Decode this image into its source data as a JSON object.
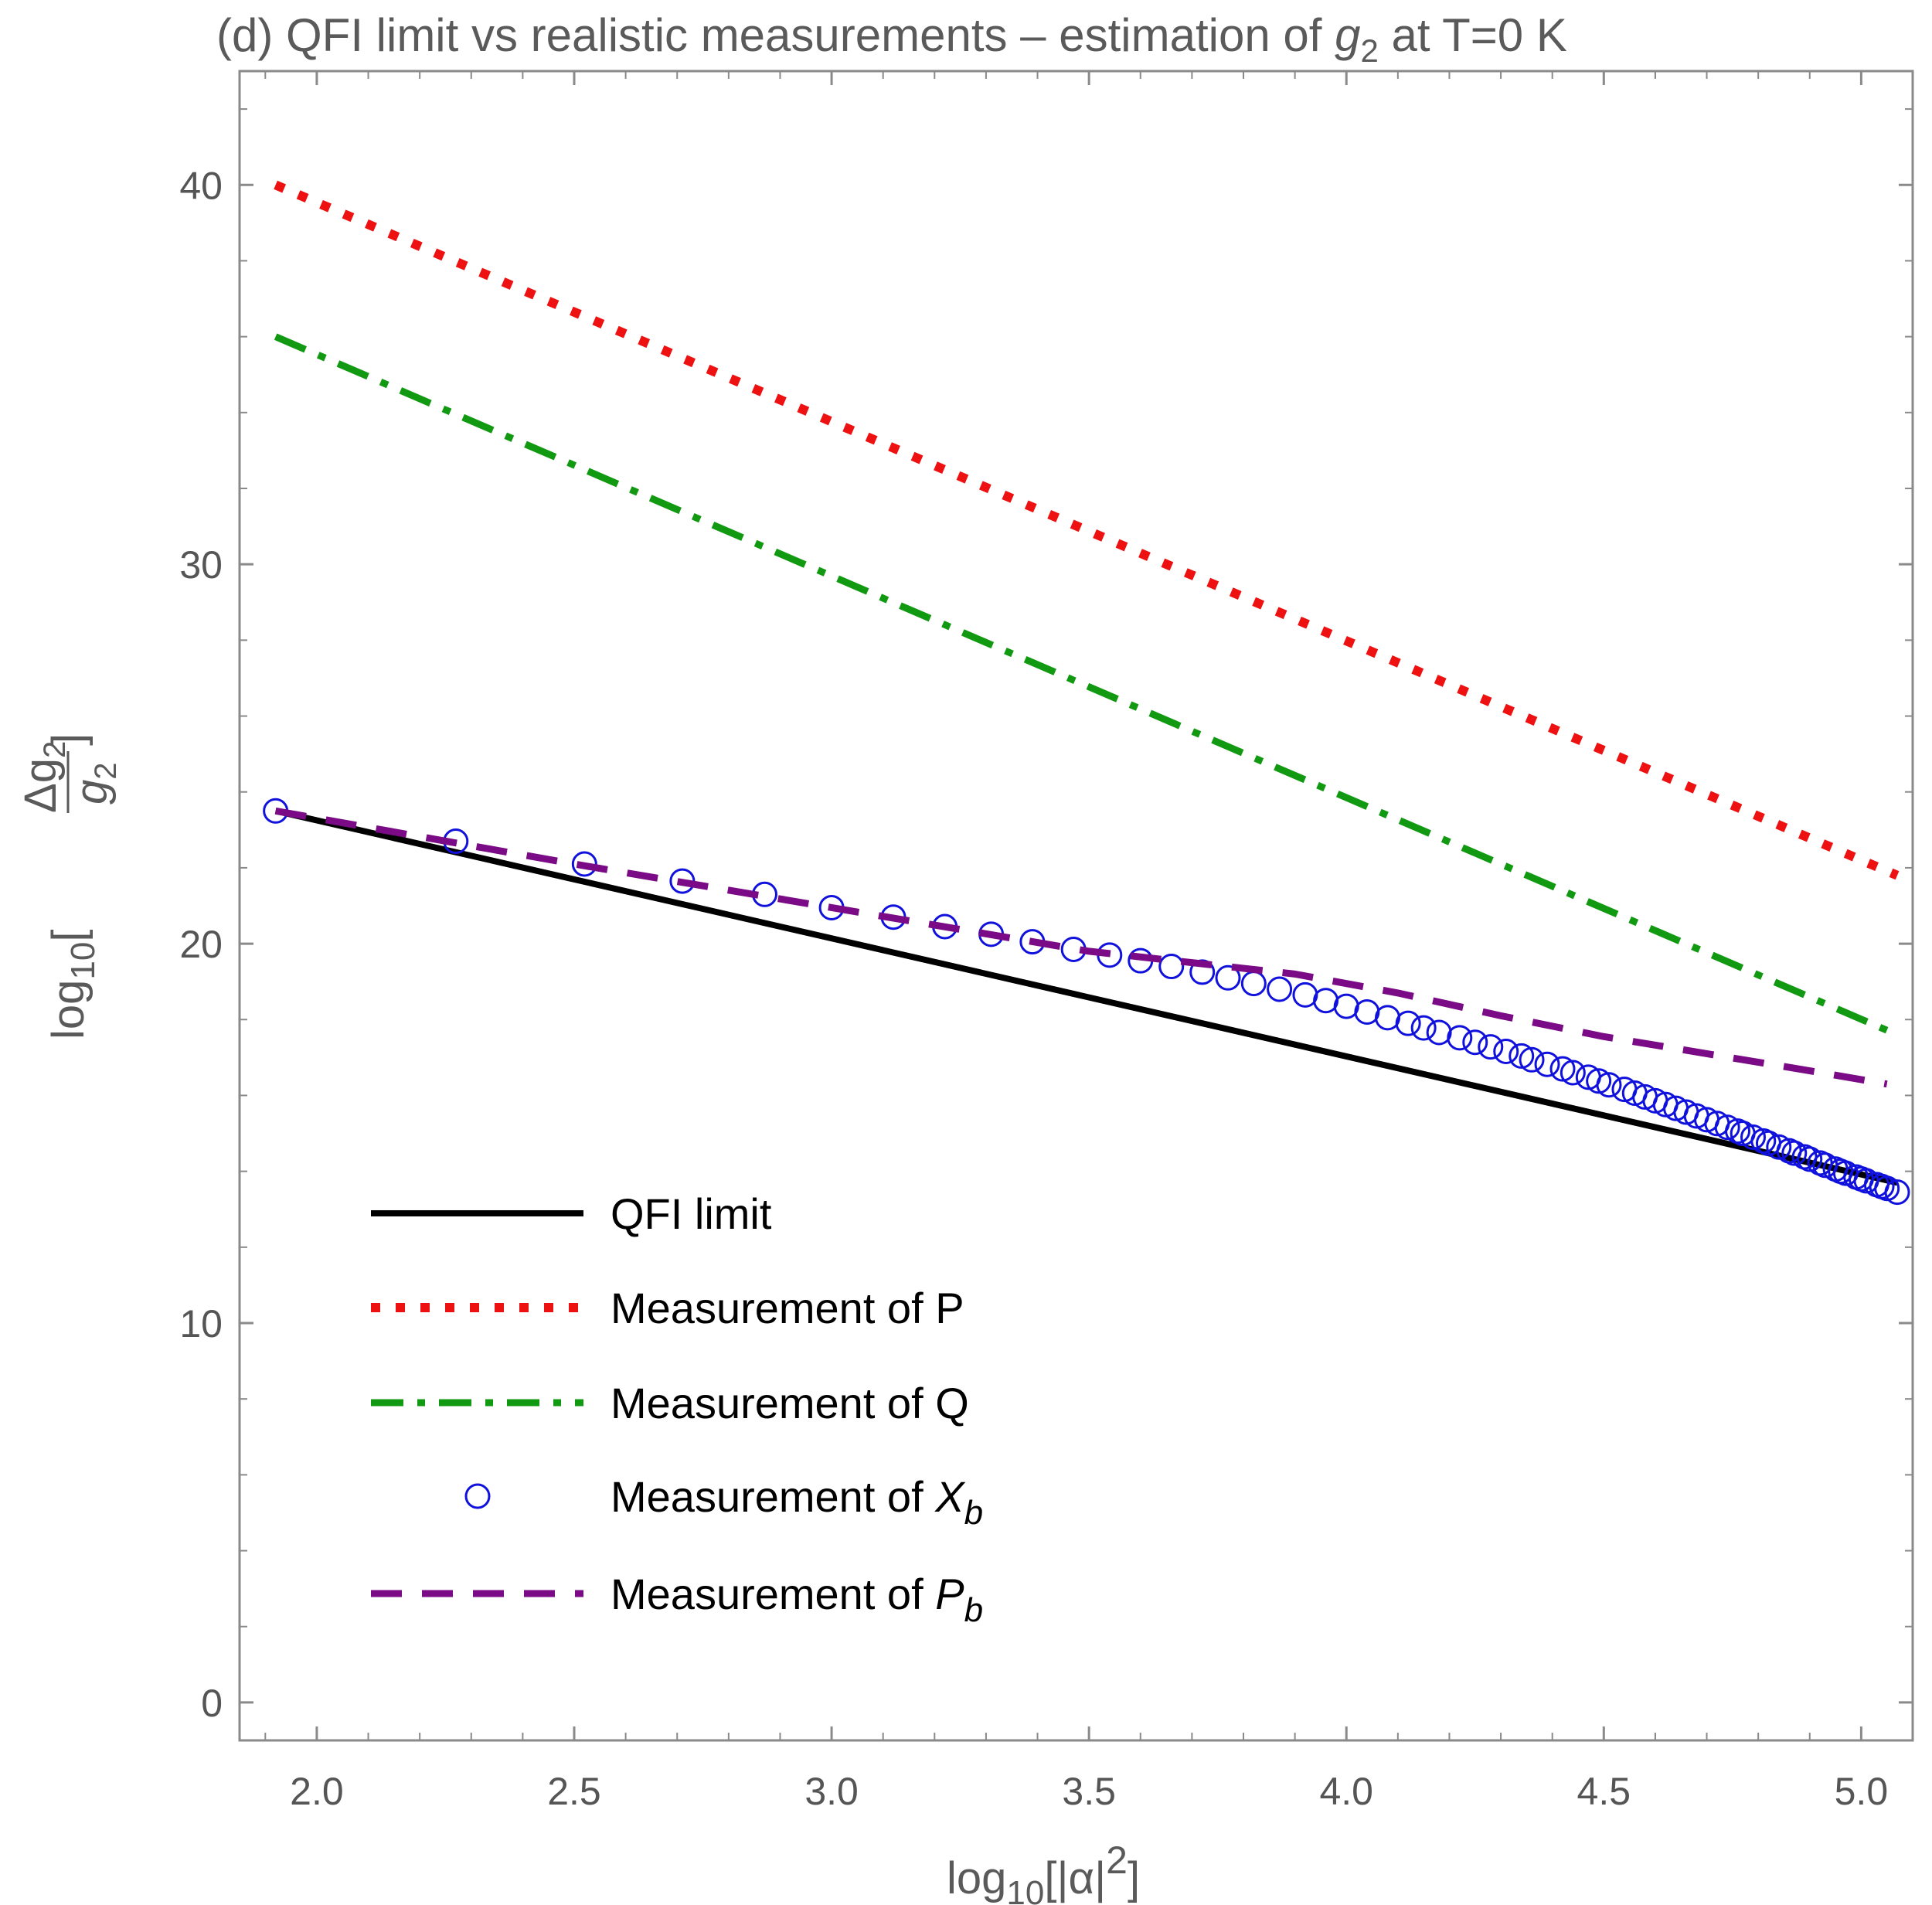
{
  "chart_data": {
    "type": "line",
    "title": {
      "prefix": "(d) QFI limit vs realistic measurements – estimation of ",
      "var": "g",
      "var_sub": "2",
      "suffix": " at T=0 K"
    },
    "xlabel": {
      "log": "log",
      "log_sub": "10",
      "body": "[|α|",
      "sup": "2",
      "close": "]"
    },
    "ylabel": {
      "log": "log",
      "log_sub": "10",
      "open": "[",
      "num": "Δg",
      "num_sub": "2",
      "den": "g",
      "den_sub": "2",
      "close": "]"
    },
    "xlim": [
      1.85,
      5.1
    ],
    "ylim": [
      -1,
      43
    ],
    "xticks": [
      2.0,
      2.5,
      3.0,
      3.5,
      4.0,
      4.5,
      5.0
    ],
    "xtick_labels": [
      "2.0",
      "2.5",
      "3.0",
      "3.5",
      "4.0",
      "4.5",
      "5.0"
    ],
    "yticks": [
      0,
      10,
      20,
      30,
      40
    ],
    "ytick_labels": [
      "0",
      "10",
      "20",
      "30",
      "40"
    ],
    "series": [
      {
        "name": "QFI limit",
        "style": "solid",
        "color": "#000000",
        "x": [
          1.92,
          5.07
        ],
        "y": [
          23.5,
          13.7
        ]
      },
      {
        "name": "Measurement of P",
        "style": "dotted",
        "color": "#ee1111",
        "x": [
          1.92,
          5.07
        ],
        "y": [
          40.0,
          21.8
        ]
      },
      {
        "name": "Measurement of Q",
        "style": "dashdot",
        "color": "#119911",
        "x": [
          1.92,
          5.07
        ],
        "y": [
          36.0,
          17.6
        ]
      },
      {
        "name": "Measurement of X_b",
        "legend_main": "Measurement of ",
        "legend_var": "X",
        "legend_sub": "b",
        "style": "circles",
        "color": "#1111dd",
        "x": [
          1.92,
          2.27,
          2.52,
          2.71,
          2.87,
          3.0,
          3.12,
          3.22,
          3.31,
          3.39,
          3.47,
          3.54,
          3.6,
          3.66,
          3.72,
          3.77,
          3.82,
          3.87,
          3.92,
          3.96,
          4.0,
          4.04,
          4.08,
          4.12,
          4.15,
          4.18,
          4.22,
          4.25,
          4.28,
          4.31,
          4.34,
          4.36,
          4.39,
          4.42,
          4.44,
          4.47,
          4.49,
          4.51,
          4.54,
          4.56,
          4.58,
          4.6,
          4.62,
          4.64,
          4.66,
          4.68,
          4.7,
          4.72,
          4.74,
          4.76,
          4.77,
          4.79,
          4.81,
          4.82,
          4.84,
          4.86,
          4.87,
          4.89,
          4.9,
          4.92,
          4.93,
          4.95,
          4.96,
          4.97,
          4.99,
          5.0,
          5.01,
          5.03,
          5.04,
          5.05,
          5.07
        ],
        "y": [
          23.5,
          22.7,
          22.1,
          21.65,
          21.3,
          20.95,
          20.7,
          20.45,
          20.25,
          20.05,
          19.85,
          19.7,
          19.55,
          19.4,
          19.25,
          19.1,
          18.95,
          18.8,
          18.65,
          18.5,
          18.35,
          18.2,
          18.05,
          17.9,
          17.78,
          17.66,
          17.52,
          17.4,
          17.28,
          17.16,
          17.04,
          16.94,
          16.82,
          16.7,
          16.6,
          16.48,
          16.38,
          16.28,
          16.16,
          16.06,
          15.96,
          15.86,
          15.76,
          15.66,
          15.56,
          15.46,
          15.36,
          15.26,
          15.16,
          15.06,
          15.0,
          14.9,
          14.8,
          14.74,
          14.64,
          14.54,
          14.48,
          14.38,
          14.32,
          14.22,
          14.16,
          14.06,
          14.0,
          13.95,
          13.85,
          13.8,
          13.75,
          13.65,
          13.6,
          13.55,
          13.45
        ]
      },
      {
        "name": "Measurement of P_b",
        "legend_main": "Measurement of ",
        "legend_var": "P",
        "legend_sub": "b",
        "style": "dashed",
        "color": "#7a0a85",
        "x": [
          1.92,
          2.5,
          3.0,
          3.5,
          3.7,
          3.9,
          4.1,
          4.3,
          4.5,
          4.7,
          4.9,
          5.05
        ],
        "y": [
          23.5,
          22.1,
          20.95,
          19.8,
          19.5,
          19.2,
          18.7,
          18.1,
          17.55,
          17.1,
          16.65,
          16.3
        ]
      }
    ],
    "legend_position": "bottom-left",
    "grid": false
  }
}
